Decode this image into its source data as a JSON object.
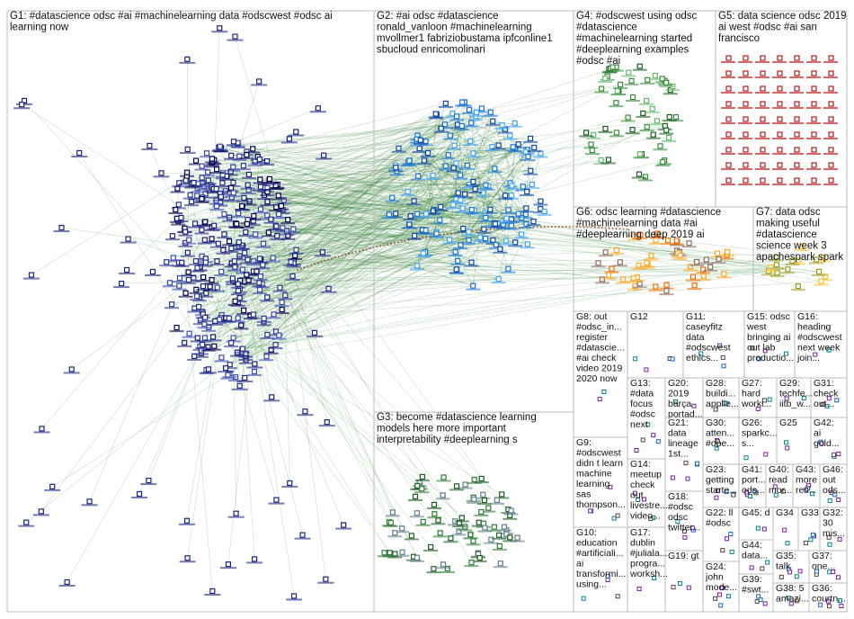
{
  "groups": [
    {
      "lines": [
        "G1: #datascience odsc #ai #machinelearning data #odscwest #odsc ai",
        "learning now"
      ]
    },
    {
      "lines": [
        "G2: #ai odsc #datascience",
        "ronald_vanloon #machinelearning",
        "mvollmer1 fabriziobustama ipfconline1",
        "sbucloud enricomolinari"
      ]
    },
    {
      "lines": [
        "G3: become #datascience learning",
        "models here more important",
        "interpretability #deeplearning s"
      ]
    },
    {
      "lines": [
        "G4: #odscwest using odsc",
        "#datascience",
        "#machinelearning started",
        "#deeplearning examples",
        "#odsc #ai"
      ]
    },
    {
      "lines": [
        "G5: data science odsc 2019",
        "ai west #odsc #ai san",
        "francisco"
      ]
    },
    {
      "lines": [
        "G6: odsc learning #datascience",
        "#machinelearning data #ai",
        "#deeplearning deep 2019 ai"
      ]
    },
    {
      "lines": [
        "G7: data odsc",
        "making useful",
        "#datascience",
        "science week 3",
        "apachespark spark"
      ]
    },
    {
      "lines": [
        "G8: out",
        "#odsc_in...",
        "register",
        "#datascie...",
        "#ai check",
        "video 2019",
        "2020 now"
      ]
    },
    {
      "lines": [
        "G12"
      ]
    },
    {
      "lines": [
        "G11:",
        "caseyfitz",
        "data",
        "#odscwest",
        "ethics..."
      ]
    },
    {
      "lines": [
        "G15: odsc",
        "west",
        "bringing ai",
        "out lab",
        "productio..."
      ]
    },
    {
      "lines": [
        "G16:",
        "heading",
        "#odscwest",
        "next week",
        "join..."
      ]
    },
    {
      "lines": [
        "G13:",
        "#data",
        "focus",
        "#odsc",
        "next"
      ]
    },
    {
      "lines": [
        "G20:",
        "2019",
        "barça",
        "portad..."
      ]
    },
    {
      "lines": [
        "G28:",
        "buildi...",
        "applie..."
      ]
    },
    {
      "lines": [
        "G27:",
        "hard",
        "worki..."
      ]
    },
    {
      "lines": [
        "G29:",
        "techfe...",
        "iitb_w..."
      ]
    },
    {
      "lines": [
        "G31:",
        "check",
        "out..."
      ]
    },
    {
      "lines": [
        "G30:",
        "atten...",
        "#ope..."
      ]
    },
    {
      "lines": [
        "G26:",
        "sparkc...",
        "s..."
      ]
    },
    {
      "lines": [
        "G25"
      ]
    },
    {
      "lines": [
        "G42:",
        "ai",
        "gold..."
      ]
    },
    {
      "lines": [
        "G9:",
        "#odscwest",
        "didn t learn",
        "machine",
        "learning",
        "sas",
        "thompson..."
      ]
    },
    {
      "lines": [
        "G14:",
        "meetup",
        "check",
        "out",
        "livestre...",
        "video..."
      ]
    },
    {
      "lines": [
        "G21:",
        "data",
        "lineage",
        "1st..."
      ]
    },
    {
      "lines": [
        "G23:",
        "getting",
        "starte..."
      ]
    },
    {
      "lines": [
        "G41:",
        "port...",
        "ods..."
      ]
    },
    {
      "lines": [
        "G40:",
        "read",
        "mor..."
      ]
    },
    {
      "lines": [
        "G43:",
        "more",
        "res..."
      ]
    },
    {
      "lines": [
        "G46:",
        "out",
        "ods..."
      ]
    },
    {
      "lines": [
        "G18:",
        "#odsc",
        "odsc",
        "twitter..."
      ]
    },
    {
      "lines": [
        "G22: ll",
        "#odsc"
      ]
    },
    {
      "lines": [
        "G45: d"
      ]
    },
    {
      "lines": [
        "G34"
      ]
    },
    {
      "lines": [
        "G33"
      ]
    },
    {
      "lines": [
        "G32:",
        "30",
        "mis..."
      ]
    },
    {
      "lines": [
        "G10:",
        "education",
        "#artificiali...",
        "ai",
        "transformi...",
        "using..."
      ]
    },
    {
      "lines": [
        "G17:",
        "dublin",
        "#juliala...",
        "progra...",
        "worksh..."
      ]
    },
    {
      "lines": [
        "G19: gt"
      ]
    },
    {
      "lines": [
        "G44:",
        "data..."
      ]
    },
    {
      "lines": [
        "G24:",
        "john",
        "mode..."
      ]
    },
    {
      "lines": [
        "G35:",
        "talk"
      ]
    },
    {
      "lines": [
        "G37:",
        "one..."
      ]
    },
    {
      "lines": [
        "G39:",
        "#swt..."
      ]
    },
    {
      "lines": [
        "G38: 5",
        "amazi..."
      ]
    },
    {
      "lines": [
        "G36:",
        "courtn..."
      ]
    }
  ]
}
